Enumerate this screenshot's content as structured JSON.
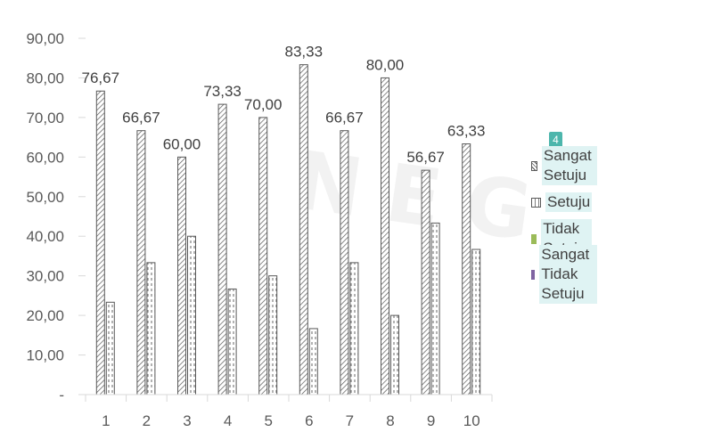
{
  "chart_data": {
    "type": "bar",
    "categories": [
      "1",
      "2",
      "3",
      "4",
      "5",
      "6",
      "7",
      "8",
      "9",
      "10"
    ],
    "series": [
      {
        "name": "Sangat Setuju",
        "values": [
          76.67,
          66.67,
          60.0,
          73.33,
          70.0,
          83.33,
          66.67,
          80.0,
          56.67,
          63.33
        ],
        "labels": [
          "76,67",
          "66,67",
          "60,00",
          "73,33",
          "70,00",
          "83,33",
          "66,67",
          "80,00",
          "56,67",
          "63,33"
        ]
      },
      {
        "name": "Setuju",
        "values": [
          23.33,
          33.33,
          40.0,
          26.67,
          30.0,
          16.67,
          33.33,
          20.0,
          43.33,
          36.67
        ]
      },
      {
        "name": "Tidak Setuju",
        "values": [
          0,
          0,
          0,
          0,
          0,
          0,
          0,
          0,
          0,
          0
        ]
      },
      {
        "name": "Sangat Tidak Setuju",
        "values": [
          0,
          0,
          0,
          0,
          0,
          0,
          0,
          0,
          0,
          0
        ]
      }
    ],
    "yticks": [
      "-",
      "10,00",
      "20,00",
      "30,00",
      "40,00",
      "50,00",
      "60,00",
      "70,00",
      "80,00",
      "90,00"
    ],
    "ylim": [
      0,
      90
    ],
    "grid": false,
    "legend_position": "right",
    "title": "",
    "xlabel": "",
    "ylabel": ""
  },
  "legend": {
    "badge": "4",
    "items": [
      {
        "label": "Sangat Setuju",
        "swatch": "hatch"
      },
      {
        "label": "Setuju",
        "swatch": "dotted"
      },
      {
        "label": "Tidak Setuju",
        "swatch": "#9bbb59"
      },
      {
        "label": "Sangat Tidak Setuju",
        "swatch": "#8064a2"
      }
    ]
  },
  "colors": {
    "axis": "#d9d9d9",
    "bar_outline": "#595959",
    "text": "#404040"
  }
}
